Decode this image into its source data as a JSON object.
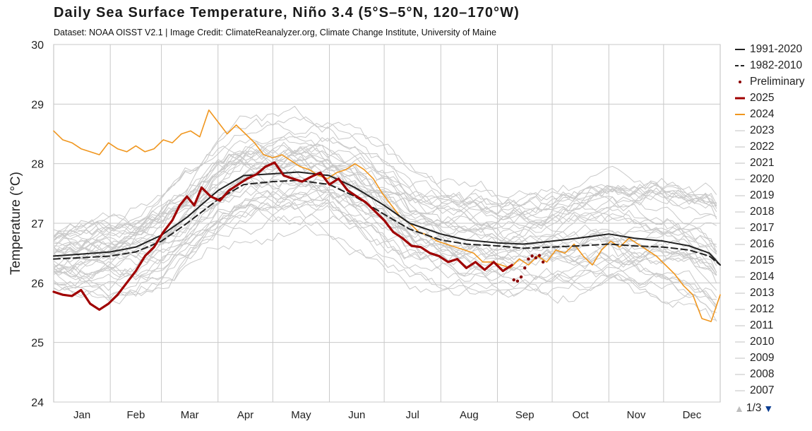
{
  "header": {
    "title": "Daily Sea Surface Temperature, Niño 3.4 (5°S–5°N, 120–170°W)",
    "subtitle": "Dataset: NOAA OISST V2.1 | Image Credit: ClimateReanalyzer.org, Climate Change Institute, University of Maine"
  },
  "legend": {
    "page": "1/3",
    "items": [
      {
        "label": "1991-2020",
        "style": "solid",
        "color": "#222222"
      },
      {
        "label": "1982-2010",
        "style": "dashed",
        "color": "#222222"
      },
      {
        "label": "Preliminary",
        "style": "dot",
        "color": "#8b0000"
      },
      {
        "label": "2025",
        "style": "thick",
        "color": "#a00000"
      },
      {
        "label": "2024",
        "style": "solid",
        "color": "#f0961e"
      },
      {
        "label": "2023",
        "style": "grey",
        "color": "#d6d6d6"
      },
      {
        "label": "2022",
        "style": "grey",
        "color": "#d6d6d6"
      },
      {
        "label": "2021",
        "style": "grey",
        "color": "#d6d6d6"
      },
      {
        "label": "2020",
        "style": "grey",
        "color": "#d6d6d6"
      },
      {
        "label": "2019",
        "style": "grey",
        "color": "#d6d6d6"
      },
      {
        "label": "2018",
        "style": "grey",
        "color": "#d6d6d6"
      },
      {
        "label": "2017",
        "style": "grey",
        "color": "#d6d6d6"
      },
      {
        "label": "2016",
        "style": "grey",
        "color": "#d6d6d6"
      },
      {
        "label": "2015",
        "style": "grey",
        "color": "#d6d6d6"
      },
      {
        "label": "2014",
        "style": "grey",
        "color": "#d6d6d6"
      },
      {
        "label": "2013",
        "style": "grey",
        "color": "#d6d6d6"
      },
      {
        "label": "2012",
        "style": "grey",
        "color": "#d6d6d6"
      },
      {
        "label": "2011",
        "style": "grey",
        "color": "#d6d6d6"
      },
      {
        "label": "2010",
        "style": "grey",
        "color": "#d6d6d6"
      },
      {
        "label": "2009",
        "style": "grey",
        "color": "#d6d6d6"
      },
      {
        "label": "2008",
        "style": "grey",
        "color": "#d6d6d6"
      },
      {
        "label": "2007",
        "style": "grey",
        "color": "#d6d6d6"
      }
    ]
  },
  "chart_data": {
    "type": "line",
    "title": "Daily Sea Surface Temperature, Niño 3.4 (5°S–5°N, 120–170°W)",
    "ylabel": "Temperature (°C)",
    "xlabel": "",
    "ylim": [
      24,
      30
    ],
    "yticks": [
      24,
      25,
      26,
      27,
      28,
      29,
      30
    ],
    "xlim": [
      1,
      366
    ],
    "months": [
      "Jan",
      "Feb",
      "Mar",
      "Apr",
      "May",
      "Jun",
      "Jul",
      "Aug",
      "Sep",
      "Oct",
      "Nov",
      "Dec"
    ],
    "grid": true,
    "legend_position": "right",
    "series": [
      {
        "name": "1991-2020",
        "style": "solid",
        "color": "#222222",
        "x": [
          1,
          15,
          32,
          46,
          60,
          74,
          91,
          105,
          121,
          135,
          152,
          166,
          182,
          196,
          213,
          227,
          244,
          258,
          274,
          288,
          305,
          319,
          335,
          349,
          360,
          366
        ],
        "y": [
          26.45,
          26.48,
          26.52,
          26.6,
          26.8,
          27.1,
          27.55,
          27.8,
          27.83,
          27.86,
          27.8,
          27.6,
          27.3,
          27.0,
          26.82,
          26.72,
          26.67,
          26.65,
          26.7,
          26.75,
          26.82,
          26.75,
          26.7,
          26.62,
          26.5,
          26.3
        ]
      },
      {
        "name": "1982-2010",
        "style": "dashed",
        "color": "#222222",
        "x": [
          1,
          15,
          32,
          46,
          60,
          74,
          91,
          105,
          121,
          135,
          152,
          166,
          182,
          196,
          213,
          227,
          244,
          258,
          274,
          288,
          305,
          319,
          335,
          349,
          360,
          366
        ],
        "y": [
          26.4,
          26.42,
          26.45,
          26.52,
          26.7,
          27.0,
          27.4,
          27.65,
          27.7,
          27.72,
          27.65,
          27.45,
          27.15,
          26.9,
          26.72,
          26.65,
          26.62,
          26.58,
          26.6,
          26.62,
          26.65,
          26.62,
          26.6,
          26.55,
          26.45,
          26.3
        ]
      },
      {
        "name": "Preliminary",
        "style": "dot",
        "color": "#8b0000",
        "x": [
          253,
          255,
          257,
          259,
          261,
          263,
          265,
          267,
          269
        ],
        "y": [
          26.05,
          26.03,
          26.1,
          26.25,
          26.4,
          26.45,
          26.42,
          26.46,
          26.35
        ]
      },
      {
        "name": "2025",
        "style": "thick",
        "color": "#a00000",
        "x": [
          1,
          6,
          11,
          16,
          21,
          26,
          31,
          36,
          41,
          46,
          51,
          56,
          61,
          66,
          70,
          74,
          78,
          82,
          87,
          92,
          97,
          102,
          107,
          112,
          117,
          122,
          127,
          132,
          137,
          142,
          147,
          152,
          157,
          162,
          167,
          172,
          177,
          182,
          187,
          192,
          197,
          202,
          207,
          212,
          217,
          222,
          227,
          232,
          237,
          242,
          247,
          252
        ],
        "y": [
          25.85,
          25.8,
          25.78,
          25.88,
          25.65,
          25.55,
          25.65,
          25.8,
          26.0,
          26.2,
          26.45,
          26.6,
          26.85,
          27.05,
          27.3,
          27.45,
          27.3,
          27.6,
          27.45,
          27.38,
          27.55,
          27.65,
          27.75,
          27.82,
          27.95,
          28.02,
          27.8,
          27.75,
          27.7,
          27.78,
          27.85,
          27.65,
          27.75,
          27.55,
          27.45,
          27.35,
          27.2,
          27.05,
          26.85,
          26.75,
          26.62,
          26.6,
          26.5,
          26.45,
          26.35,
          26.4,
          26.25,
          26.35,
          26.22,
          26.35,
          26.2,
          26.3
        ]
      },
      {
        "name": "2024",
        "style": "solid",
        "color": "#f0961e",
        "x": [
          1,
          6,
          11,
          16,
          21,
          26,
          31,
          36,
          41,
          46,
          51,
          56,
          61,
          66,
          71,
          76,
          81,
          86,
          91,
          96,
          101,
          106,
          111,
          116,
          121,
          126,
          131,
          136,
          141,
          146,
          151,
          156,
          161,
          166,
          171,
          176,
          181,
          186,
          191,
          196,
          201,
          206,
          211,
          216,
          221,
          226,
          231,
          236,
          241,
          246,
          251,
          256,
          261,
          266,
          271,
          276,
          281,
          286,
          291,
          296,
          301,
          306,
          311,
          316,
          321,
          326,
          331,
          336,
          341,
          346,
          351,
          356,
          361,
          366
        ],
        "y": [
          28.55,
          28.4,
          28.35,
          28.25,
          28.2,
          28.15,
          28.35,
          28.25,
          28.2,
          28.3,
          28.2,
          28.25,
          28.4,
          28.35,
          28.5,
          28.55,
          28.45,
          28.9,
          28.7,
          28.5,
          28.65,
          28.5,
          28.35,
          28.15,
          28.1,
          28.15,
          28.05,
          27.95,
          27.9,
          27.8,
          27.75,
          27.85,
          27.9,
          28.0,
          27.9,
          27.75,
          27.5,
          27.3,
          27.1,
          27.0,
          26.85,
          26.8,
          26.7,
          26.65,
          26.6,
          26.55,
          26.5,
          26.35,
          26.35,
          26.3,
          26.25,
          26.4,
          26.3,
          26.45,
          26.35,
          26.55,
          26.5,
          26.65,
          26.45,
          26.3,
          26.55,
          26.7,
          26.6,
          26.75,
          26.65,
          26.55,
          26.45,
          26.3,
          26.15,
          25.95,
          25.8,
          25.4,
          25.35,
          25.8
        ]
      }
    ],
    "background_years": [
      "2023",
      "2022",
      "2021",
      "2020",
      "2019",
      "2018",
      "2017",
      "2016",
      "2015",
      "2014",
      "2013",
      "2012",
      "2011",
      "2010",
      "2009",
      "2008",
      "2007"
    ]
  }
}
